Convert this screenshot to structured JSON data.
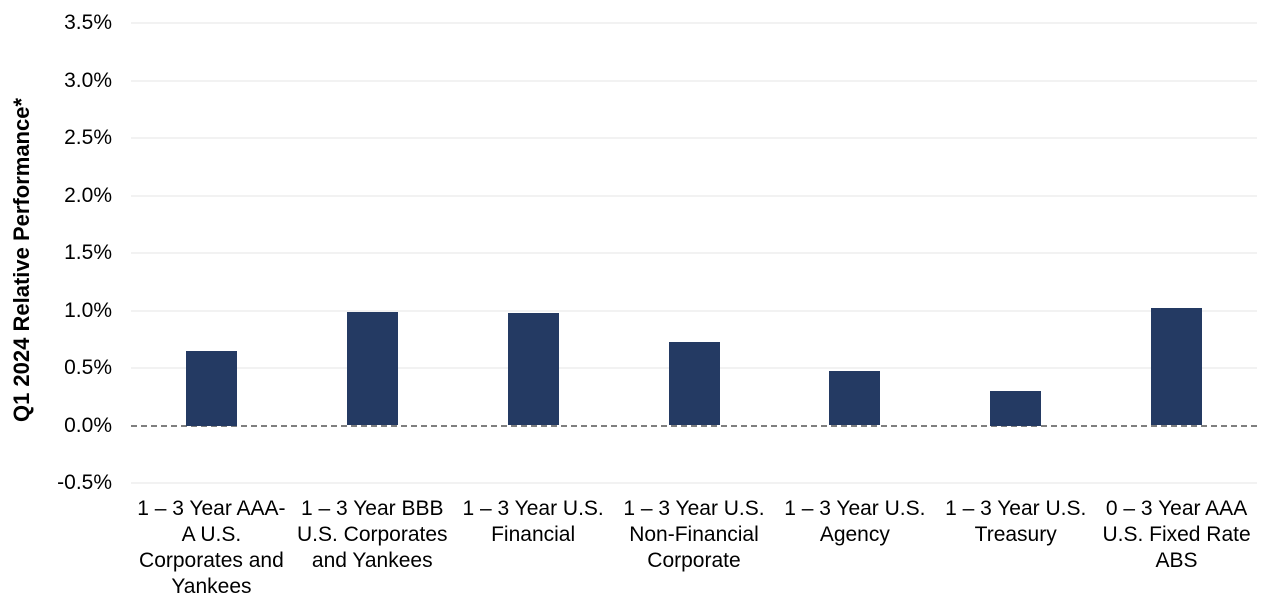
{
  "chart_data": {
    "type": "bar",
    "title": "",
    "xlabel": "",
    "ylabel": "Q1 2024 Relative Performance*",
    "value_unit": "%",
    "categories": [
      "1 – 3 Year AAA-A U.S. Corporates and Yankees",
      "1 – 3 Year BBB U.S. Corporates and Yankees",
      "1 – 3 Year U.S. Financial",
      "1 – 3 Year U.S. Non-Financial Corporate",
      "1 – 3 Year U.S. Agency",
      "1 – 3 Year U.S. Treasury",
      "0 – 3 Year AAA U.S. Fixed Rate ABS"
    ],
    "category_label_lines": [
      [
        "1 – 3 Year AAA-",
        "A U.S.",
        "Corporates and",
        "Yankees"
      ],
      [
        "1 – 3 Year BBB",
        "U.S. Corporates",
        "and Yankees"
      ],
      [
        "1 – 3 Year U.S.",
        "Financial"
      ],
      [
        "1 – 3 Year U.S.",
        "Non-Financial",
        "Corporate"
      ],
      [
        "1 – 3 Year U.S.",
        "Agency"
      ],
      [
        "1 – 3 Year U.S.",
        "Treasury"
      ],
      [
        "0 – 3 Year AAA",
        "U.S. Fixed Rate",
        "ABS"
      ]
    ],
    "values": [
      0.65,
      0.99,
      0.98,
      0.73,
      0.47,
      0.3,
      1.02
    ],
    "ylim": [
      -0.5,
      3.5
    ],
    "ytick_step": 0.5,
    "ytick_labels": [
      "3.5%",
      "3.0%",
      "2.5%",
      "2.0%",
      "1.5%",
      "1.0%",
      "0.5%",
      "0.0%",
      "-0.5%"
    ],
    "ytick_values": [
      3.5,
      3.0,
      2.5,
      2.0,
      1.5,
      1.0,
      0.5,
      0.0,
      -0.5
    ],
    "grid": "horizontal",
    "legend": "none",
    "zero_line_style": "dashed",
    "colors": {
      "bar": "#243a63",
      "gridline": "#f2f2f2",
      "zero_line": "#7f7f7f",
      "text": "#000000",
      "background": "#ffffff"
    }
  }
}
